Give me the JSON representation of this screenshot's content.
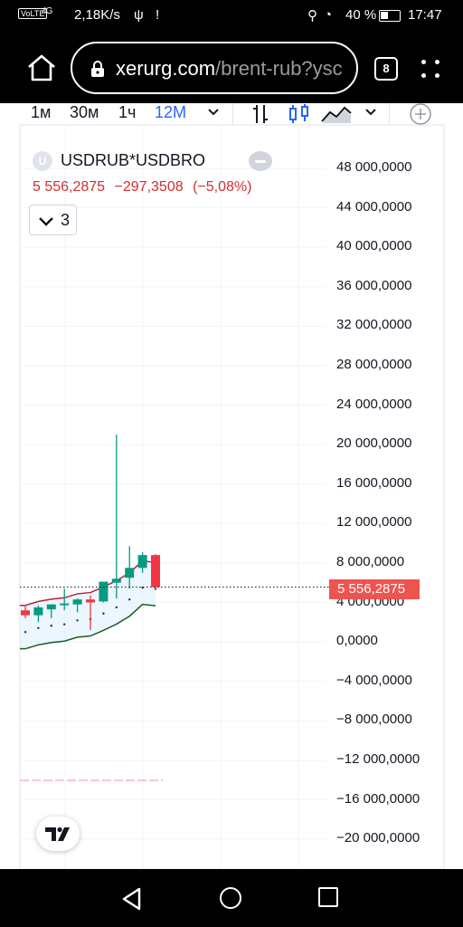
{
  "status_bar": {
    "network": "VoLTE",
    "signal": "4G",
    "speed": "2,18K/s",
    "usb": "ψ",
    "alert": "!",
    "battery": "40 %",
    "time": "17:47"
  },
  "browser": {
    "url_domain": "xerurg.com",
    "url_path": "/brent-rub?ysc",
    "tab_count": "8"
  },
  "toolbar": {
    "timeframes": [
      "1м",
      "30м",
      "1ч",
      "12М"
    ],
    "active_timeframe": "12М"
  },
  "legend": {
    "logo_letter": "U",
    "symbol": "USDRUB*USDBRO",
    "last_price": "5 556,2875",
    "change": "−297,3508",
    "change_percent": "(−5,08%)",
    "indicators_count": "3"
  },
  "price_scale": {
    "ticks": [
      "48 000,0000",
      "44 000,0000",
      "40 000,0000",
      "36 000,0000",
      "32 000,0000",
      "28 000,0000",
      "24 000,0000",
      "20 000,0000",
      "16 000,0000",
      "12 000,0000",
      "8 000,0000",
      "4 000,0000",
      "0,0000",
      "−4 000,0000",
      "−8 000,0000",
      "−12 000,0000",
      "−16 000,0000",
      "−20 000,0000"
    ],
    "current_price_label": "5 556,2875"
  },
  "colors": {
    "up": "#089981",
    "down": "#f23645",
    "accent": "#2962ff",
    "band_fill": "#e3f2fd"
  },
  "chart_data": {
    "type": "candlestick",
    "ylim": [
      -20000,
      48000
    ],
    "current_price": 5556.2875,
    "candles": [
      {
        "o": 3200,
        "h": 3600,
        "l": 2400,
        "c": 2700
      },
      {
        "o": 2700,
        "h": 3700,
        "l": 2000,
        "c": 3500
      },
      {
        "o": 3300,
        "h": 3800,
        "l": 2400,
        "c": 3800
      },
      {
        "o": 3800,
        "h": 5400,
        "l": 3200,
        "c": 3900
      },
      {
        "o": 3800,
        "h": 4400,
        "l": 3000,
        "c": 4300
      },
      {
        "o": 4300,
        "h": 4700,
        "l": 1200,
        "c": 4000
      },
      {
        "o": 4100,
        "h": 6100,
        "l": 4000,
        "c": 6100
      },
      {
        "o": 6000,
        "h": 21000,
        "l": 4400,
        "c": 6400
      },
      {
        "o": 6500,
        "h": 9700,
        "l": 5400,
        "c": 7500
      },
      {
        "o": 7500,
        "h": 9100,
        "l": 7000,
        "c": 8800
      },
      {
        "o": 8800,
        "h": 8900,
        "l": 5300,
        "c": 5556.2875
      }
    ]
  }
}
